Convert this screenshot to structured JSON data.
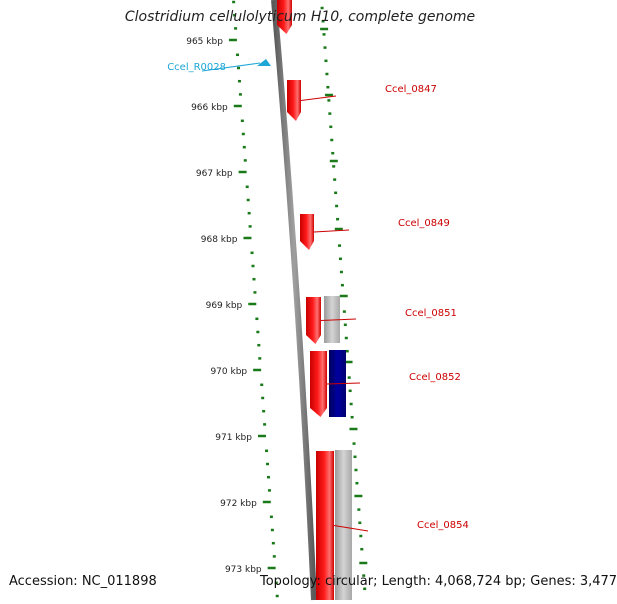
{
  "title": "Clostridium cellulolyticum H10, complete genome",
  "footer": {
    "accession": "Accession: NC_011898",
    "summary": "Topology: circular; Length: 4,068,724 bp; Genes: 3,477"
  },
  "colors": {
    "forward_gene": "#ff0000",
    "reverse_gene": "#c0c0c0",
    "blue_gene": "#00008b",
    "rna": "#1ea6d6",
    "tick": "#1a7a1a",
    "backbone": "#7a7a7a",
    "label_red": "#cc0000",
    "label_blue": "#1ea6d6"
  },
  "scale": {
    "kbp_labels": [
      "965 kbp",
      "966 kbp",
      "967 kbp",
      "968 kbp",
      "969 kbp",
      "970 kbp",
      "971 kbp",
      "972 kbp",
      "973 kbp"
    ]
  },
  "genes": [
    {
      "label": "",
      "kind": "forward"
    },
    {
      "label": "Ccel_R0028",
      "kind": "rna"
    },
    {
      "label": "Ccel_0847",
      "kind": "forward"
    },
    {
      "label": "Ccel_0849",
      "kind": "forward"
    },
    {
      "label": "Ccel_0851",
      "kind": "forward"
    },
    {
      "label": "",
      "kind": "reverse"
    },
    {
      "label": "Ccel_0852",
      "kind": "forward"
    },
    {
      "label": "",
      "kind": "blue"
    },
    {
      "label": "Ccel_0854",
      "kind": "forward"
    },
    {
      "label": "",
      "kind": "reverse"
    }
  ]
}
